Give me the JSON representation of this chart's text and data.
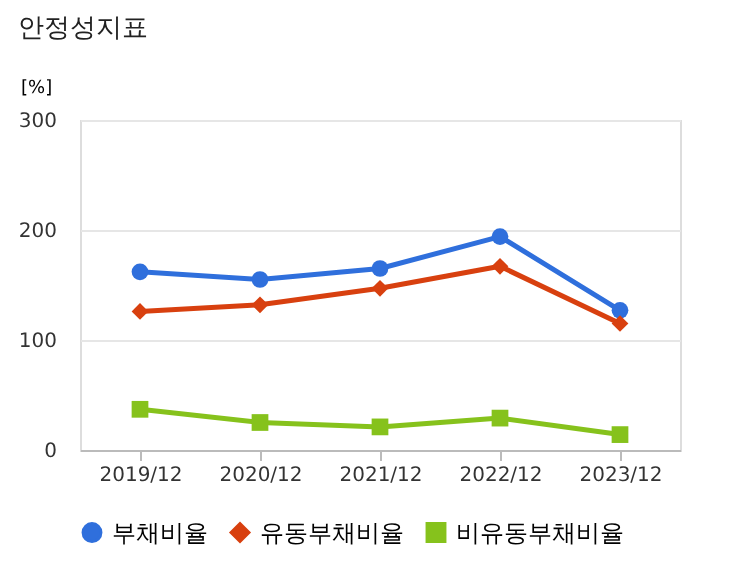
{
  "chart_data": {
    "type": "line",
    "title": "안정성지표",
    "ylabel": "[%]",
    "categories": [
      "2019/12",
      "2020/12",
      "2021/12",
      "2022/12",
      "2023/12"
    ],
    "series": [
      {
        "name": "부채비율",
        "color": "#2f6fdc",
        "marker": "circle",
        "values": [
          162,
          155,
          165,
          194,
          127
        ]
      },
      {
        "name": "유동부채비율",
        "color": "#d8400f",
        "marker": "diamond",
        "values": [
          126,
          132,
          147,
          167,
          115
        ]
      },
      {
        "name": "비유동부채비율",
        "color": "#86c21c",
        "marker": "square",
        "values": [
          37,
          25,
          21,
          29,
          14
        ]
      }
    ],
    "ylim": [
      0,
      300
    ],
    "yticks": [
      0,
      100,
      200,
      300
    ],
    "grid": "y",
    "legend": "bottom"
  }
}
